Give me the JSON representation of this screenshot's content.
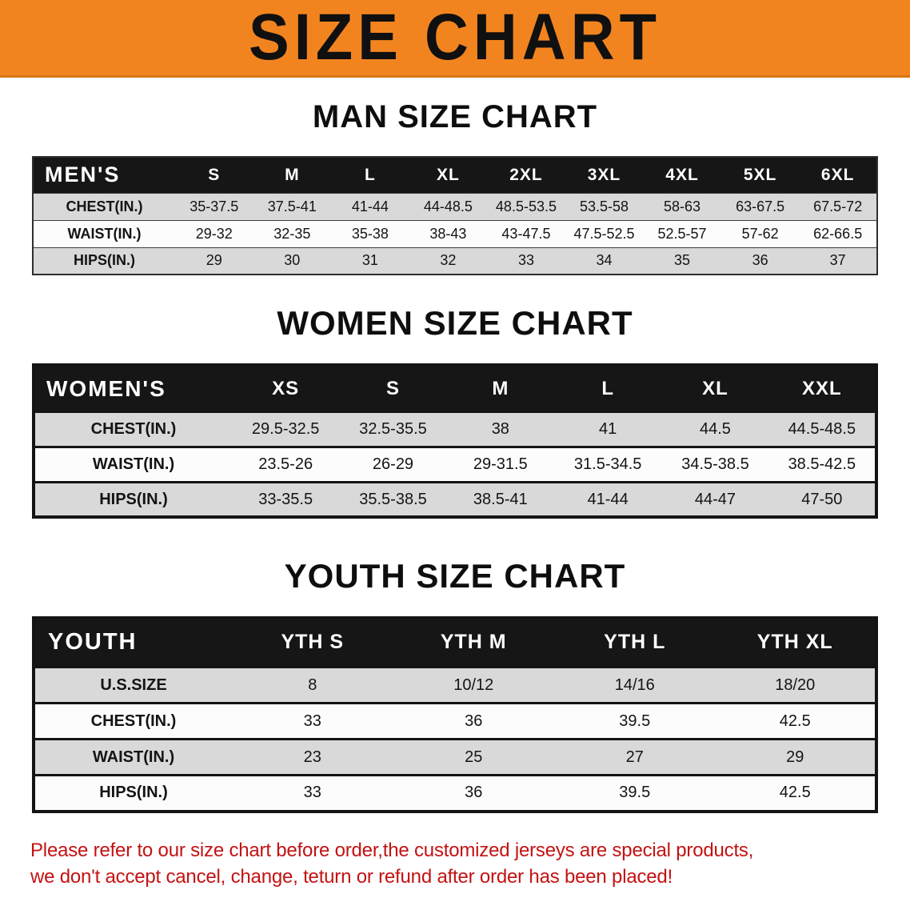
{
  "banner": {
    "title": "SIZE CHART"
  },
  "colors": {
    "banner": "#F28420",
    "banner_text": "#101010",
    "table_header_bg": "#161616",
    "table_header_text": "#FFFFFF",
    "stripe_gray": "#D9D9D9",
    "row_white": "#FCFCFC",
    "disclaimer_red": "#C41212"
  },
  "sections": [
    {
      "heading": "MAN SIZE CHART",
      "table": {
        "header": [
          "MEN'S",
          "S",
          "M",
          "L",
          "XL",
          "2XL",
          "3XL",
          "4XL",
          "5XL",
          "6XL"
        ],
        "rows": [
          [
            "CHEST(IN.)",
            "35-37.5",
            "37.5-41",
            "41-44",
            "44-48.5",
            "48.5-53.5",
            "53.5-58",
            "58-63",
            "63-67.5",
            "67.5-72"
          ],
          [
            "WAIST(IN.)",
            "29-32",
            "32-35",
            "35-38",
            "38-43",
            "43-47.5",
            "47.5-52.5",
            "52.5-57",
            "57-62",
            "62-66.5"
          ],
          [
            "HIPS(IN.)",
            "29",
            "30",
            "31",
            "32",
            "33",
            "34",
            "35",
            "36",
            "37"
          ]
        ]
      }
    },
    {
      "heading": "WOMEN SIZE CHART",
      "table": {
        "header": [
          "WOMEN'S",
          "XS",
          "S",
          "M",
          "L",
          "XL",
          "XXL"
        ],
        "rows": [
          [
            "CHEST(IN.)",
            "29.5-32.5",
            "32.5-35.5",
            "38",
            "41",
            "44.5",
            "44.5-48.5"
          ],
          [
            "WAIST(IN.)",
            "23.5-26",
            "26-29",
            "29-31.5",
            "31.5-34.5",
            "34.5-38.5",
            "38.5-42.5"
          ],
          [
            "HIPS(IN.)",
            "33-35.5",
            "35.5-38.5",
            "38.5-41",
            "41-44",
            "44-47",
            "47-50"
          ]
        ]
      }
    },
    {
      "heading": "YOUTH SIZE CHART",
      "table": {
        "header": [
          "YOUTH",
          "YTH S",
          "YTH M",
          "YTH L",
          "YTH XL"
        ],
        "rows": [
          [
            "U.S.SIZE",
            "8",
            "10/12",
            "14/16",
            "18/20"
          ],
          [
            "CHEST(IN.)",
            "33",
            "36",
            "39.5",
            "42.5"
          ],
          [
            "WAIST(IN.)",
            "23",
            "25",
            "27",
            "29"
          ],
          [
            "HIPS(IN.)",
            "33",
            "36",
            "39.5",
            "42.5"
          ]
        ]
      }
    }
  ],
  "disclaimer": {
    "line1": "Please refer to our size chart before order,the customized jerseys are special products,",
    "line2": "we don't accept cancel, change, teturn or refund after order has been placed!"
  }
}
